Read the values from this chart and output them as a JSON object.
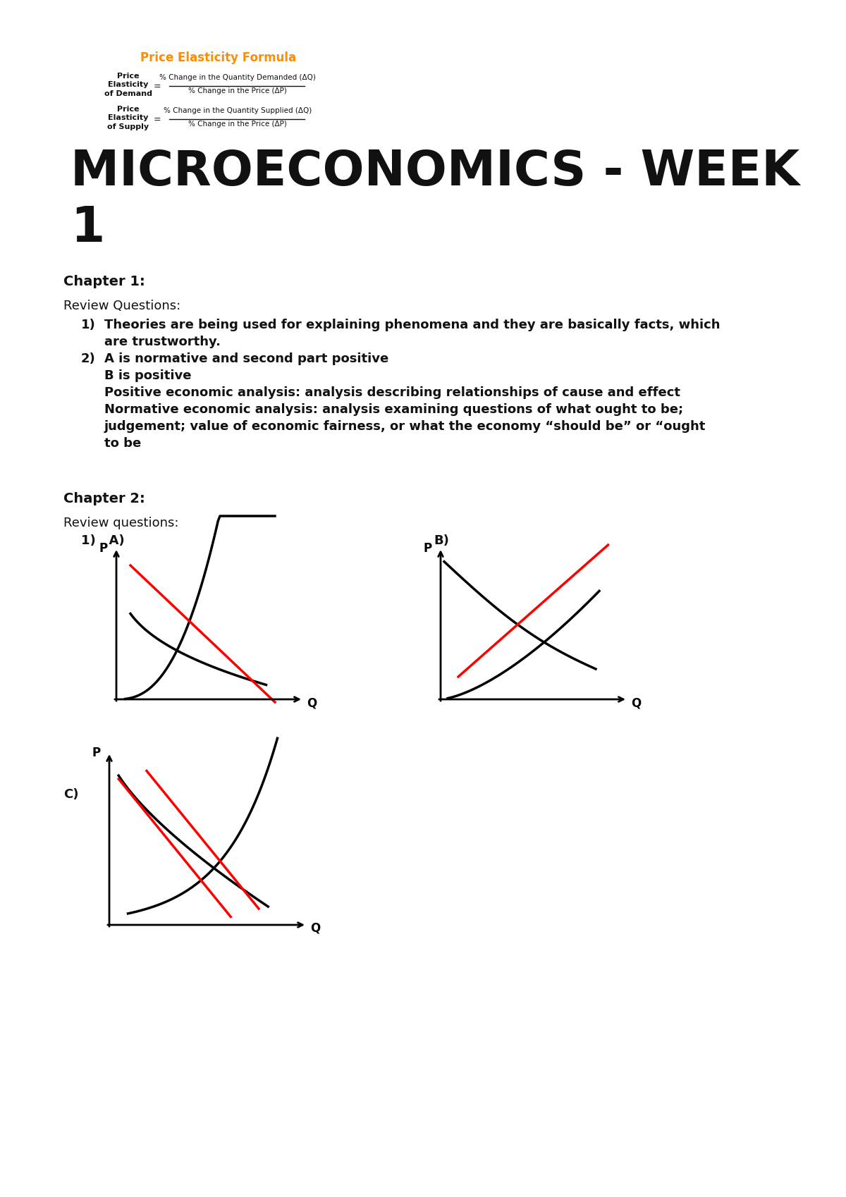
{
  "bg_color": "#ffffff",
  "orange_title": "Price Elasticity Formula",
  "formula_demand_left": "Price\nElasticity\nof Demand",
  "formula_demand_num": "% Change in the Quantity Demanded (ΔQ)",
  "formula_demand_den": "% Change in the Price (ΔP)",
  "formula_supply_left": "Price\nElasticity\nof Supply",
  "formula_supply_num": "% Change in the Quantity Supplied (ΔQ)",
  "formula_supply_den": "% Change in the Price (ΔP)",
  "main_title_line1": "MICROECONOMICS - WEEK",
  "main_title_line2": "1",
  "chapter1_heading": "Chapter 1:",
  "review_q_heading": "Review Questions:",
  "item1_num": "1)",
  "item1_text": "Theories are being used for explaining phenomena and they are basically facts, which\n      are trustworthy.",
  "item2_num": "2)",
  "item2a": "A is normative and second part positive",
  "item2b": "B is positive",
  "item2c": "Positive economic analysis: analysis describing relationships of cause and effect",
  "item2d": "Normative economic analysis: analysis examining questions of what ought to be;\n      judgement; value of economic fairness, or what the economy “should be” or “ought\n      to be",
  "chapter2_heading": "Chapter 2:",
  "review_q2_heading": "Review questions:",
  "label_1A": "1)   A)",
  "label_B": "B)",
  "label_C": "C)"
}
